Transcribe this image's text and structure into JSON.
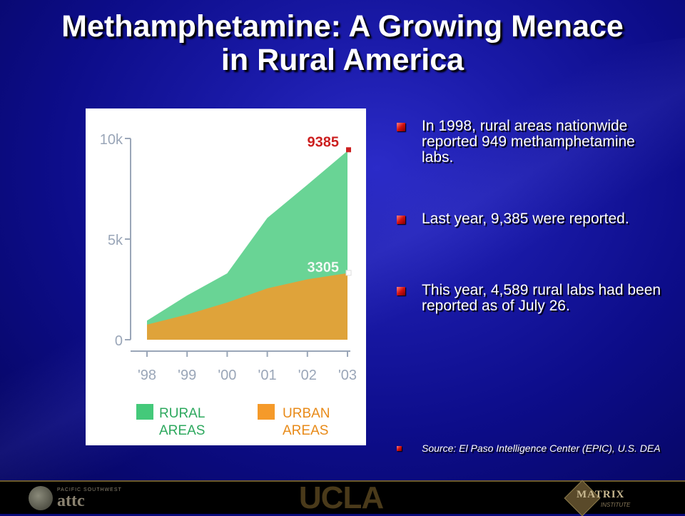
{
  "title": {
    "line1": "Methamphetamine: A Growing Menace",
    "line2": "in Rural America"
  },
  "bullets": [
    "In 1998, rural areas nationwide reported 949 methamphetamine labs.",
    "Last year, 9,385 were reported.",
    "This year, 4,589 rural labs had been reported as of July 26."
  ],
  "source": "Source: El Paso Intelligence Center (EPIC), U.S. DEA",
  "footer": {
    "attc_small": "PACIFIC SOUTHWEST",
    "attc_big": "attc",
    "ucla": "UCLA",
    "matrix_name": "MATRIX",
    "matrix_sub": "INSTITUTE"
  },
  "chart_data": {
    "type": "area",
    "x": [
      "'98",
      "'99",
      "'00",
      "'01",
      "'02",
      "'03"
    ],
    "yticks": [
      "0",
      "5k",
      "10k"
    ],
    "ylim": [
      0,
      10000
    ],
    "series": [
      {
        "name": "RURAL AREAS",
        "color": "#44c97a",
        "values": [
          949,
          2200,
          3300,
          6050,
          7700,
          9385
        ]
      },
      {
        "name": "URBAN AREAS",
        "color": "#f59a2a",
        "values": [
          750,
          1250,
          1850,
          2550,
          3000,
          3305
        ]
      }
    ],
    "annotations": [
      {
        "label": "9385",
        "color": "#cc2020"
      },
      {
        "label": "3305",
        "color": "#ffffff"
      }
    ],
    "legend": [
      {
        "label_line1": "RURAL",
        "label_line2": "AREAS",
        "color": "#44c97a",
        "text_color": "#2da85e"
      },
      {
        "label_line1": "URBAN",
        "label_line2": "AREAS",
        "color": "#f59a2a",
        "text_color": "#e88a18"
      }
    ],
    "axis_color": "#9aa6b8",
    "grid": false,
    "legend_position": "bottom"
  }
}
